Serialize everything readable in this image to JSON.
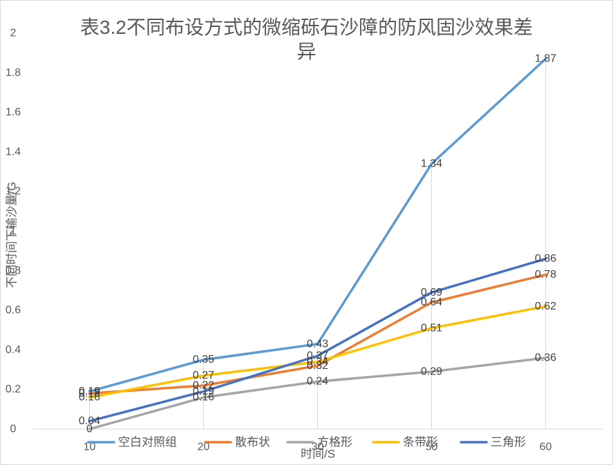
{
  "chart_data": {
    "type": "line",
    "title": "表3.2不同布设方式的微缩砾石沙障的防风固沙效果差异",
    "xlabel": "时间/S",
    "ylabel": "不同时间下输沙量/G",
    "categories": [
      "10",
      "20",
      "30",
      "50",
      "60"
    ],
    "ylim": [
      0,
      2
    ],
    "yticks": [
      0,
      0.2,
      0.4,
      0.6,
      0.8,
      1,
      1.2,
      1.4,
      1.6,
      1.8,
      2
    ],
    "grid": false,
    "drop_lines": true,
    "data_labels": true,
    "legend": "bottom",
    "series": [
      {
        "name": "空白对照组",
        "color": "#5B9BD5",
        "values": [
          0.19,
          0.35,
          0.43,
          1.34,
          1.87
        ]
      },
      {
        "name": "散布状",
        "color": "#ED7D31",
        "values": [
          0.18,
          0.22,
          0.32,
          0.64,
          0.78
        ]
      },
      {
        "name": "方格形",
        "color": "#A5A5A5",
        "values": [
          0,
          0.16,
          0.24,
          0.29,
          0.36
        ]
      },
      {
        "name": "条带形",
        "color": "#FFC000",
        "values": [
          0.16,
          0.27,
          0.34,
          0.51,
          0.62
        ]
      },
      {
        "name": "三角形",
        "color": "#4472C4",
        "values": [
          0.04,
          0.19,
          0.37,
          0.69,
          0.86
        ]
      }
    ]
  }
}
